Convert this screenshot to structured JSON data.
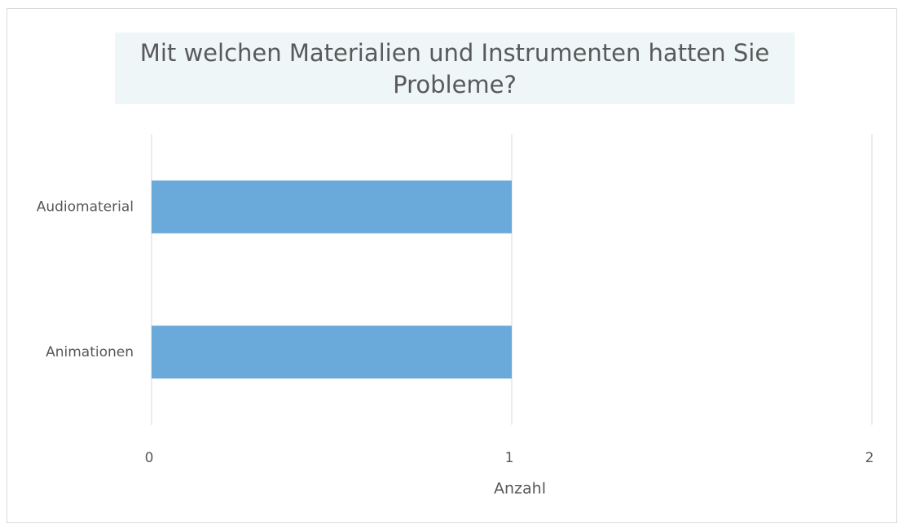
{
  "chart_data": {
    "type": "bar",
    "orientation": "horizontal",
    "title": "Mit welchen Materialien und Instrumenten hatten Sie Probleme?",
    "categories": [
      "Audiomaterial",
      "Animationen"
    ],
    "values": [
      1,
      1
    ],
    "color": "#6aaadb",
    "xlabel": "Anzahl",
    "xlim": [
      0,
      2
    ],
    "xticks": [
      0,
      1,
      2
    ],
    "grid": true
  }
}
